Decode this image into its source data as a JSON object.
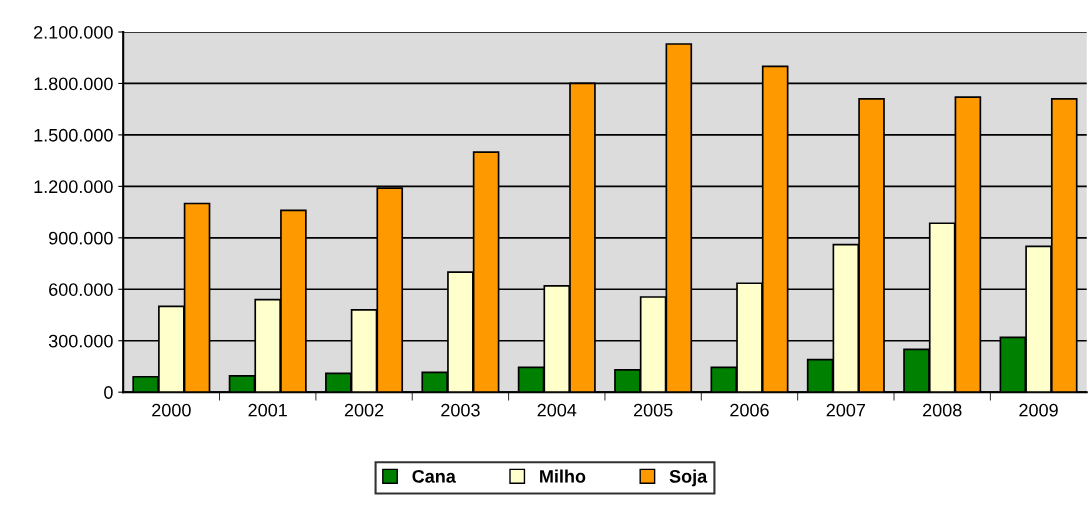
{
  "chart_data": {
    "type": "bar",
    "categories": [
      "2000",
      "2001",
      "2002",
      "2003",
      "2004",
      "2005",
      "2006",
      "2007",
      "2008",
      "2009"
    ],
    "series": [
      {
        "name": "Cana",
        "color": "#008000",
        "values": [
          90000,
          95000,
          110000,
          115000,
          145000,
          130000,
          145000,
          190000,
          250000,
          320000
        ]
      },
      {
        "name": "Milho",
        "color": "#ffffcc",
        "values": [
          500000,
          540000,
          480000,
          700000,
          620000,
          555000,
          635000,
          860000,
          985000,
          850000
        ]
      },
      {
        "name": "Soja",
        "color": "#ff9900",
        "values": [
          1100000,
          1060000,
          1190000,
          1400000,
          1800000,
          2030000,
          1900000,
          1710000,
          1720000,
          1710000
        ]
      }
    ],
    "ylim": [
      0,
      2100000
    ],
    "yticks": [
      {
        "value": 0,
        "label": "0"
      },
      {
        "value": 300000,
        "label": "300.000"
      },
      {
        "value": 600000,
        "label": "600.000"
      },
      {
        "value": 900000,
        "label": "900.000"
      },
      {
        "value": 1200000,
        "label": "1.200.000"
      },
      {
        "value": 1500000,
        "label": "1.500.000"
      },
      {
        "value": 1800000,
        "label": "1.800.000"
      },
      {
        "value": 2100000,
        "label": "2.100.000"
      }
    ],
    "grid": "y",
    "legend": "bottom"
  }
}
